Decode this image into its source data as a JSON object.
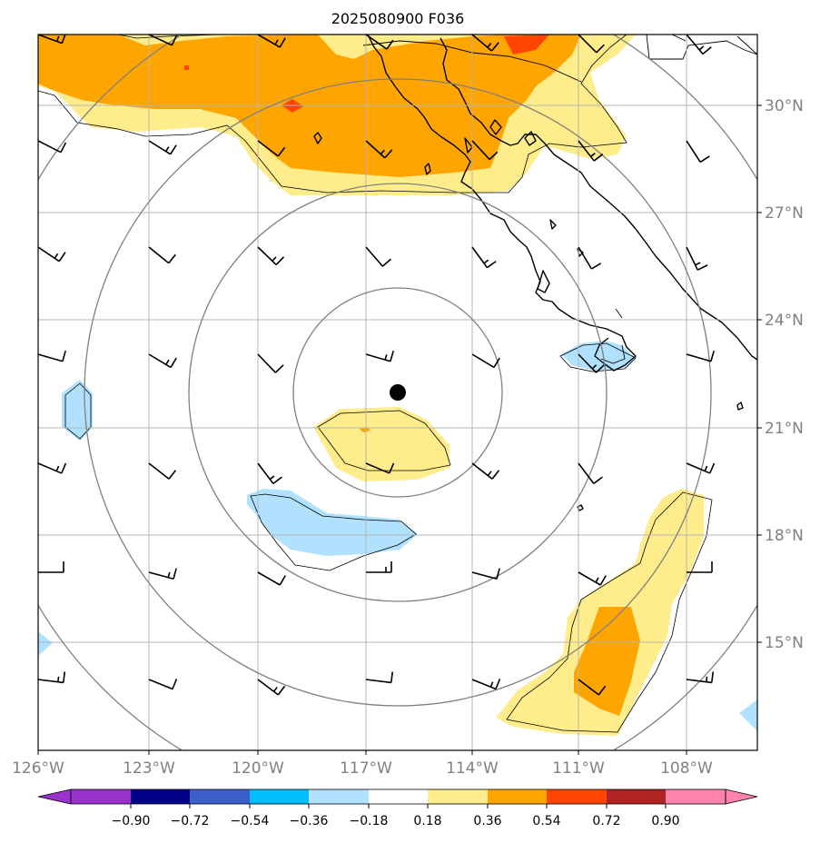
{
  "title": "2025080900 F036",
  "map": {
    "lon_labels": [
      "126°W",
      "123°W",
      "120°W",
      "117°W",
      "114°W",
      "111°W",
      "108°W"
    ],
    "lat_labels": [
      "30°N",
      "27°N",
      "24°N",
      "21°N",
      "18°N",
      "15°N"
    ],
    "storm_center": {
      "lon": "116.1°W",
      "lat": "22.0°N"
    }
  },
  "colorbar": {
    "ticks": [
      "−0.90",
      "−0.72",
      "−0.54",
      "−0.36",
      "−0.18",
      "0.18",
      "0.36",
      "0.54",
      "0.72",
      "0.90"
    ],
    "colors": [
      "#9932cc",
      "#00008b",
      "#3a5fcd",
      "#00bfff",
      "#b0e2ff",
      "#ffffff",
      "#ffec8b",
      "#ffa500",
      "#ff4500",
      "#b22222",
      "#ff82ab"
    ]
  }
}
